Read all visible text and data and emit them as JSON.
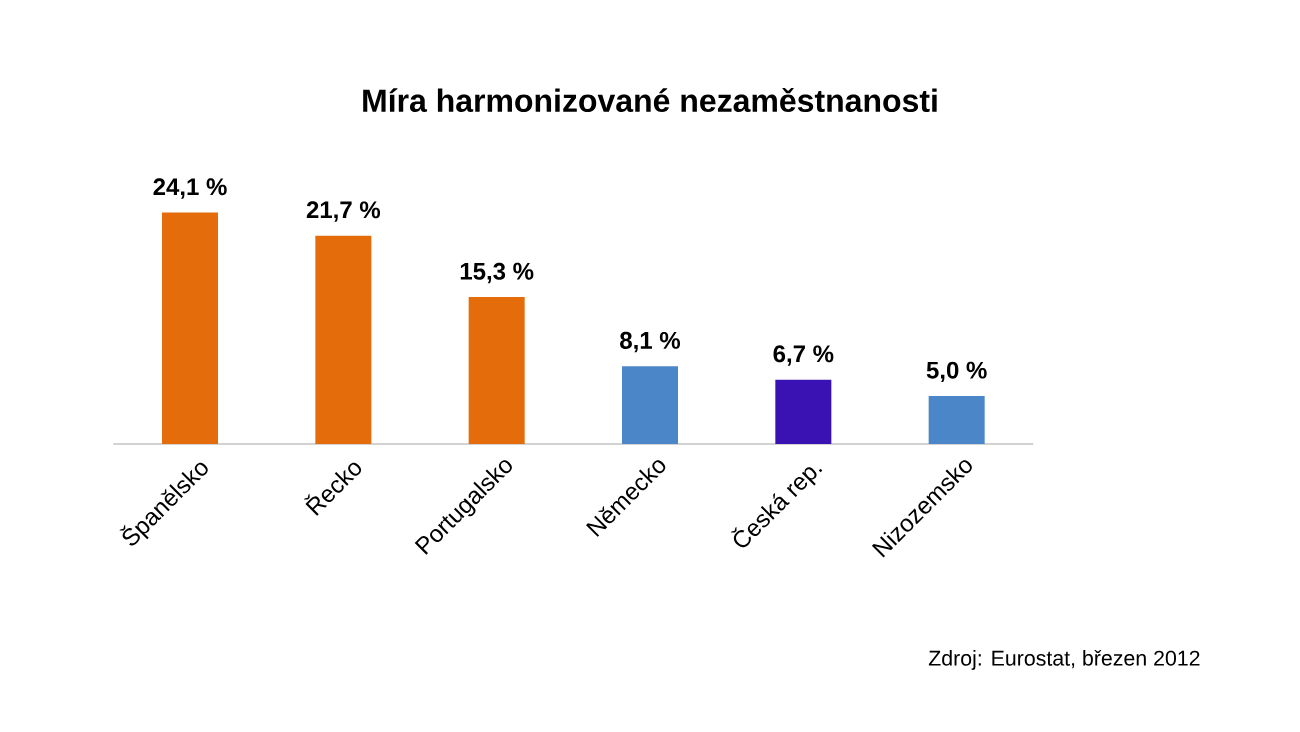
{
  "chart_data": {
    "type": "bar",
    "title": "Míra harmonizované nezaměstnanosti",
    "categories": [
      "Španělsko",
      "Řecko",
      "Portugalsko",
      "Německo",
      "Česká rep.",
      "Nizozemsko"
    ],
    "values": [
      24.1,
      21.7,
      15.3,
      8.1,
      6.7,
      5.0
    ],
    "colors": [
      "#e46c0a",
      "#e46c0a",
      "#e46c0a",
      "#4a86c8",
      "#3a12b4",
      "#4a86c8"
    ],
    "value_labels": [
      "24,1 %",
      "21,7 %",
      "15,3 %",
      "8,1 %",
      "6,7 %",
      "5,0 %"
    ],
    "annotations": [
      "Zdroj: Eurostat, březen 2012"
    ]
  }
}
